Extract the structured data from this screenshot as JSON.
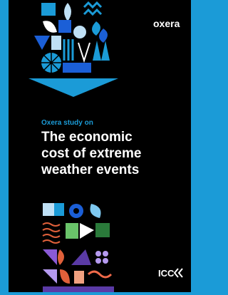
{
  "header": {
    "logo": "oxera"
  },
  "subtitle": "Oxera study on",
  "title": [
    "The economic",
    "cost of extreme",
    "weather events"
  ],
  "footer": {
    "logo": "ICC"
  }
}
